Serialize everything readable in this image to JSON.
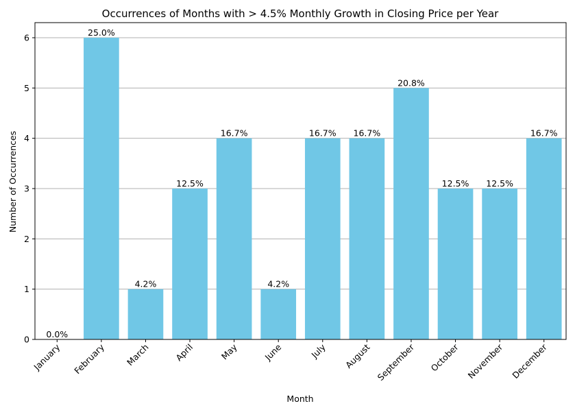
{
  "chart_data": {
    "type": "bar",
    "title": "Occurrences of Months with > 4.5% Monthly Growth in Closing Price per Year",
    "xlabel": "Month",
    "ylabel": "Number of Occurrences",
    "categories": [
      "January",
      "February",
      "March",
      "April",
      "May",
      "June",
      "July",
      "August",
      "September",
      "October",
      "November",
      "December"
    ],
    "values": [
      0,
      6,
      1,
      3,
      4,
      1,
      4,
      4,
      5,
      3,
      3,
      4
    ],
    "data_labels": [
      "0.0%",
      "25.0%",
      "4.2%",
      "12.5%",
      "16.7%",
      "4.2%",
      "16.7%",
      "16.7%",
      "20.8%",
      "12.5%",
      "12.5%",
      "16.7%"
    ],
    "ylim": [
      0,
      6.3
    ],
    "yticks": [
      0,
      1,
      2,
      3,
      4,
      5,
      6
    ],
    "ytick_labels": [
      "0",
      "1",
      "2",
      "3",
      "4",
      "5",
      "6"
    ],
    "grid": "horizontal",
    "legend": "none",
    "bar_color": "#70c7e6",
    "grid_color": "#b0b0b0"
  }
}
